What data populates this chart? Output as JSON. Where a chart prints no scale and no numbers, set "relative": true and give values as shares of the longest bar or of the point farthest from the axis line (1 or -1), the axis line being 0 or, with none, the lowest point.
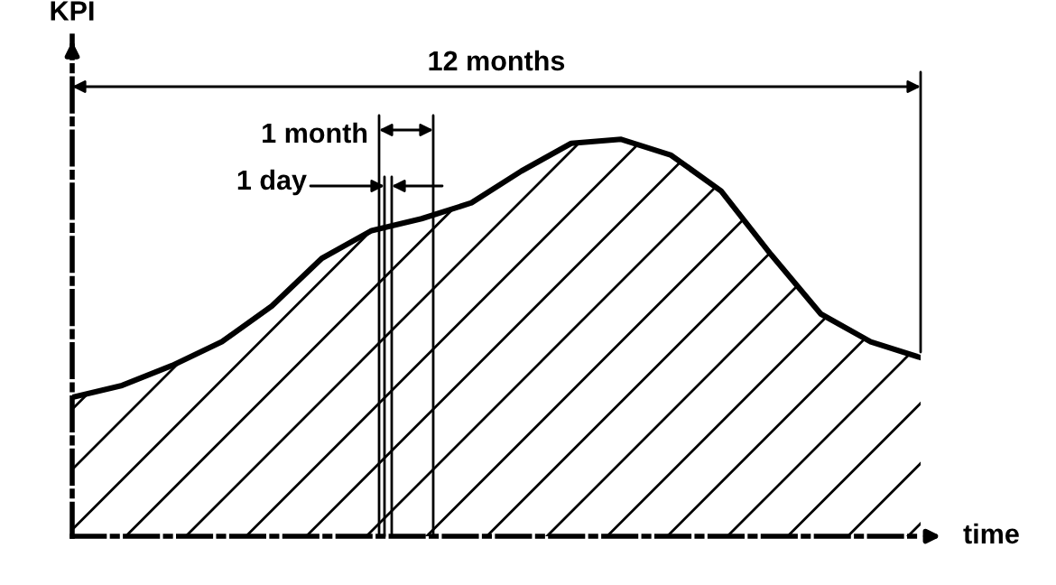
{
  "chart_data": {
    "type": "area",
    "relative": true,
    "xlabel": "time",
    "ylabel": "KPI",
    "categories": [
      null,
      null,
      null,
      null,
      null,
      null,
      null,
      null,
      null,
      null,
      null,
      null,
      null,
      null,
      null,
      null,
      null,
      null
    ],
    "series": [
      {
        "color": "#000000",
        "values": [
          0.35,
          0.38,
          0.43,
          0.49,
          0.58,
          0.7,
          0.77,
          0.8,
          0.84,
          0.92,
          0.99,
          1.0,
          0.96,
          0.87,
          0.71,
          0.56,
          0.49,
          0.45
        ]
      }
    ],
    "annotations": [
      "12 months",
      "1 month",
      "1 day"
    ]
  }
}
